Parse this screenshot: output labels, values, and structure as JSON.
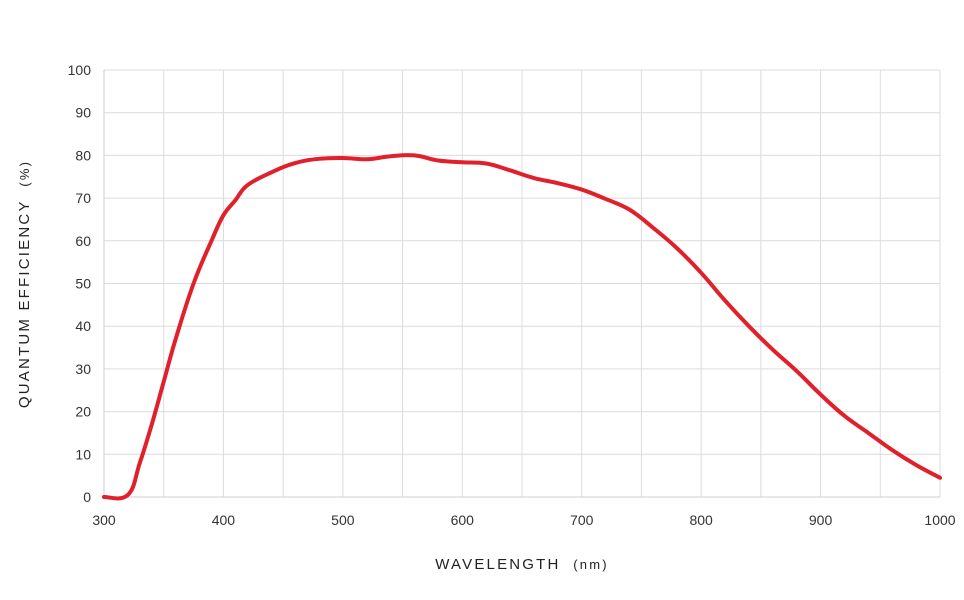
{
  "chart_data": {
    "type": "line",
    "xlabel_main": "WAVELENGTH",
    "xlabel_unit": "(nm)",
    "ylabel_main": "QUANTUM EFFICIENCY",
    "ylabel_unit": "(%)",
    "xlim": [
      300,
      1000
    ],
    "ylim": [
      0,
      100
    ],
    "x_ticks": [
      300,
      400,
      500,
      600,
      700,
      800,
      900,
      1000
    ],
    "y_ticks": [
      0,
      10,
      20,
      30,
      40,
      50,
      60,
      70,
      80,
      90,
      100
    ],
    "grid": true,
    "line_color": "#e0202a",
    "series": [
      {
        "x": [
          300,
          320,
          330,
          340,
          350,
          360,
          375,
          390,
          400,
          410,
          420,
          440,
          460,
          480,
          500,
          520,
          540,
          560,
          580,
          600,
          620,
          640,
          660,
          680,
          700,
          720,
          740,
          760,
          780,
          800,
          820,
          840,
          860,
          880,
          900,
          920,
          940,
          960,
          980,
          1000
        ],
        "y": [
          0,
          0.5,
          8,
          17,
          27,
          37,
          50,
          60,
          66,
          69.5,
          73,
          76,
          78.2,
          79.2,
          79.4,
          79.1,
          79.8,
          80,
          78.8,
          78.4,
          78.1,
          76.5,
          74.7,
          73.5,
          72,
          69.8,
          67.3,
          63,
          58.2,
          52.5,
          46,
          40,
          34.5,
          29.5,
          24,
          19,
          15,
          11,
          7.5,
          4.5
        ]
      }
    ]
  }
}
